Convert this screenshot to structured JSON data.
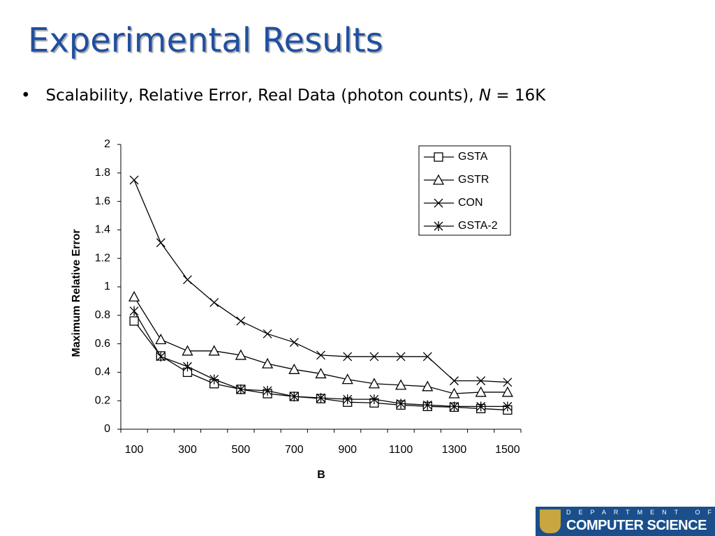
{
  "slide_title": "Experimental Results",
  "subtitle": [
    "Scalability, Relative Error, Real Data (photon counts), ",
    "N",
    " = 16K"
  ],
  "logo": {
    "line1": "DEPARTMENT OF",
    "line2": "COMPUTER SCIENCE"
  },
  "chart_data": {
    "type": "line",
    "x_label": "B",
    "y_label": "Maximum Relative Error",
    "categories": [
      "100",
      null,
      "300",
      null,
      "500",
      null,
      "700",
      null,
      "900",
      null,
      "1100",
      null,
      "1300",
      null,
      "1500"
    ],
    "ylim": [
      0,
      2
    ],
    "yticks": [
      0,
      0.2,
      0.4,
      0.6,
      0.8,
      1,
      1.2,
      1.4,
      1.6,
      1.8,
      2
    ],
    "legend": "top-right",
    "series": [
      {
        "name": "GSTA",
        "color": "#000000",
        "marker": "square",
        "values": [
          0.76,
          0.515,
          0.4,
          0.32,
          0.28,
          0.25,
          0.23,
          0.215,
          0.19,
          0.185,
          0.17,
          0.16,
          0.155,
          0.145,
          0.135
        ]
      },
      {
        "name": "GSTR",
        "color": "#000000",
        "marker": "triangle",
        "values": [
          0.93,
          0.63,
          0.55,
          0.55,
          0.52,
          0.46,
          0.42,
          0.39,
          0.35,
          0.32,
          0.31,
          0.3,
          0.25,
          0.26,
          0.26
        ]
      },
      {
        "name": "CON",
        "color": "#000000",
        "marker": "x",
        "values": [
          1.75,
          1.31,
          1.05,
          0.89,
          0.76,
          0.67,
          0.61,
          0.52,
          0.51,
          0.51,
          0.51,
          0.51,
          0.34,
          0.34,
          0.33
        ]
      },
      {
        "name": "GSTA-2",
        "color": "#000000",
        "marker": "star",
        "values": [
          0.83,
          0.51,
          0.44,
          0.35,
          0.28,
          0.27,
          0.23,
          0.22,
          0.21,
          0.21,
          0.18,
          0.17,
          0.16,
          0.16,
          0.16
        ]
      }
    ]
  }
}
